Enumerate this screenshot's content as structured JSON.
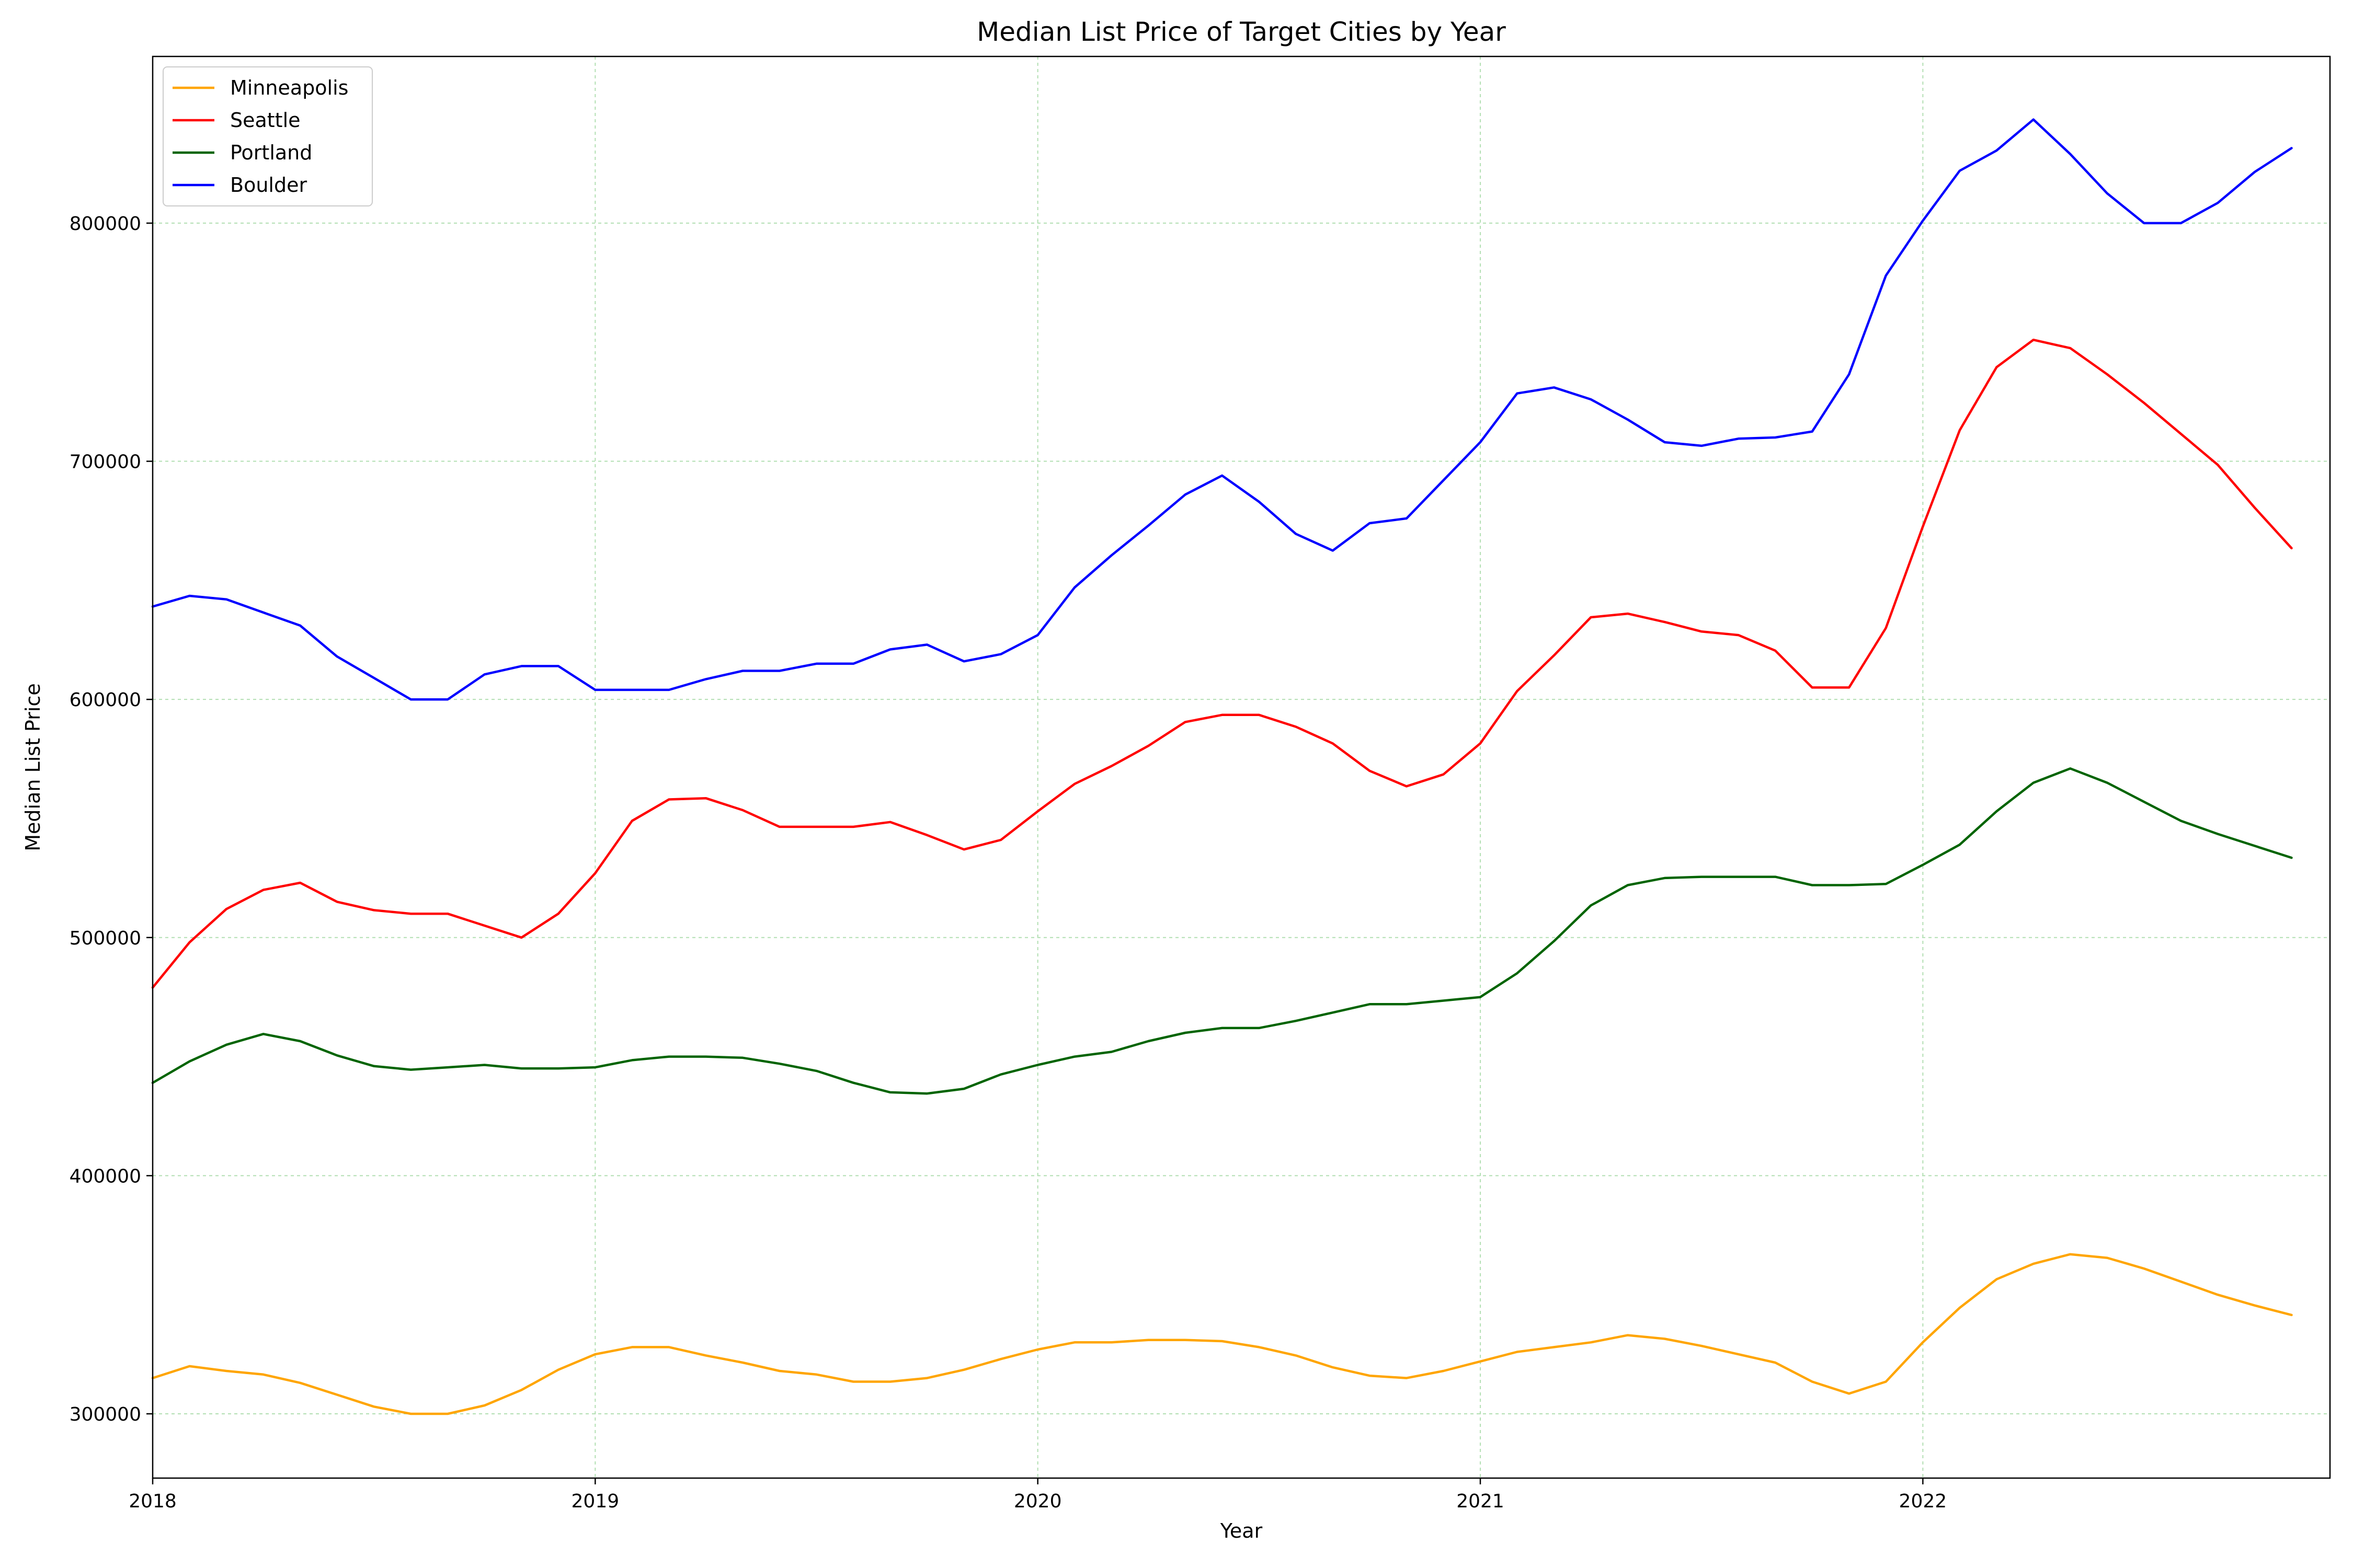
{
  "chart_data": {
    "type": "line",
    "title": "Median List Price of Target Cities by Year",
    "xlabel": "Year",
    "ylabel": "Median List Price",
    "xlim": [
      2018.0,
      2022.92
    ],
    "ylim": [
      273000,
      870000
    ],
    "x_ticks": [
      2018,
      2019,
      2020,
      2021,
      2022
    ],
    "y_ticks": [
      300000,
      400000,
      500000,
      600000,
      700000,
      800000
    ],
    "grid": true,
    "grid_color": "#b2dfb2",
    "legend_position": "upper left",
    "x_start": 2018.0,
    "x_step": 0.08333,
    "series": [
      {
        "name": "Minneapolis",
        "color": "#ffa500",
        "values": [
          315000,
          320000,
          318000,
          316500,
          313000,
          308000,
          303000,
          300000,
          300000,
          303500,
          310000,
          318500,
          325000,
          328000,
          328000,
          324500,
          321500,
          318000,
          316500,
          313500,
          313500,
          315000,
          318500,
          323000,
          327000,
          330000,
          330000,
          331000,
          331000,
          330500,
          328000,
          324500,
          319500,
          316000,
          315000,
          318000,
          322000,
          326000,
          328000,
          330000,
          333000,
          331500,
          328500,
          325000,
          321500,
          313500,
          308500,
          313500,
          330000,
          344500,
          356500,
          363000,
          367000,
          365500,
          361000,
          355500,
          350000,
          345500,
          341500
        ]
      },
      {
        "name": "Seattle",
        "color": "#ff0000",
        "values": [
          479000,
          498000,
          512000,
          520000,
          523000,
          515000,
          511500,
          510000,
          510000,
          505000,
          500000,
          510000,
          527000,
          549000,
          558000,
          558500,
          553500,
          546500,
          546500,
          546500,
          548500,
          543000,
          537000,
          541000,
          553000,
          564500,
          572000,
          580500,
          590500,
          593500,
          593500,
          588500,
          581500,
          570000,
          563500,
          568500,
          581500,
          603500,
          618500,
          634500,
          636000,
          632500,
          628500,
          627000,
          620500,
          605000,
          605000,
          630000,
          672500,
          713000,
          739500,
          751000,
          747500,
          736500,
          724500,
          711500,
          698500,
          680500,
          663500
        ]
      },
      {
        "name": "Portland",
        "color": "#006400",
        "values": [
          439000,
          448000,
          455000,
          459500,
          456500,
          450500,
          446000,
          444500,
          445500,
          446500,
          445000,
          445000,
          445500,
          448500,
          450000,
          450000,
          449500,
          447000,
          444000,
          439000,
          435000,
          434500,
          436500,
          442500,
          446500,
          450000,
          452000,
          456500,
          460000,
          462000,
          462000,
          465000,
          468500,
          472000,
          472000,
          473500,
          475000,
          485000,
          498500,
          513500,
          522000,
          525000,
          525500,
          525500,
          525500,
          522000,
          522000,
          522500,
          530500,
          539000,
          553000,
          565000,
          571000,
          565000,
          557000,
          549000,
          543500,
          538500,
          533500
        ]
      },
      {
        "name": "Boulder",
        "color": "#0000ff",
        "values": [
          639000,
          643500,
          642000,
          636500,
          631000,
          618000,
          609000,
          600000,
          600000,
          610500,
          614000,
          614000,
          604000,
          604000,
          604000,
          608500,
          612000,
          612000,
          615000,
          615000,
          621000,
          623000,
          616000,
          619000,
          627000,
          647000,
          660500,
          673000,
          686000,
          694000,
          683000,
          669500,
          662500,
          674000,
          676000,
          692000,
          708000,
          728500,
          731000,
          726000,
          717500,
          708000,
          706500,
          709500,
          710000,
          712500,
          736500,
          778000,
          801000,
          822000,
          830500,
          843500,
          829000,
          812500,
          800000,
          800000,
          808500,
          821500,
          831500
        ]
      }
    ]
  }
}
